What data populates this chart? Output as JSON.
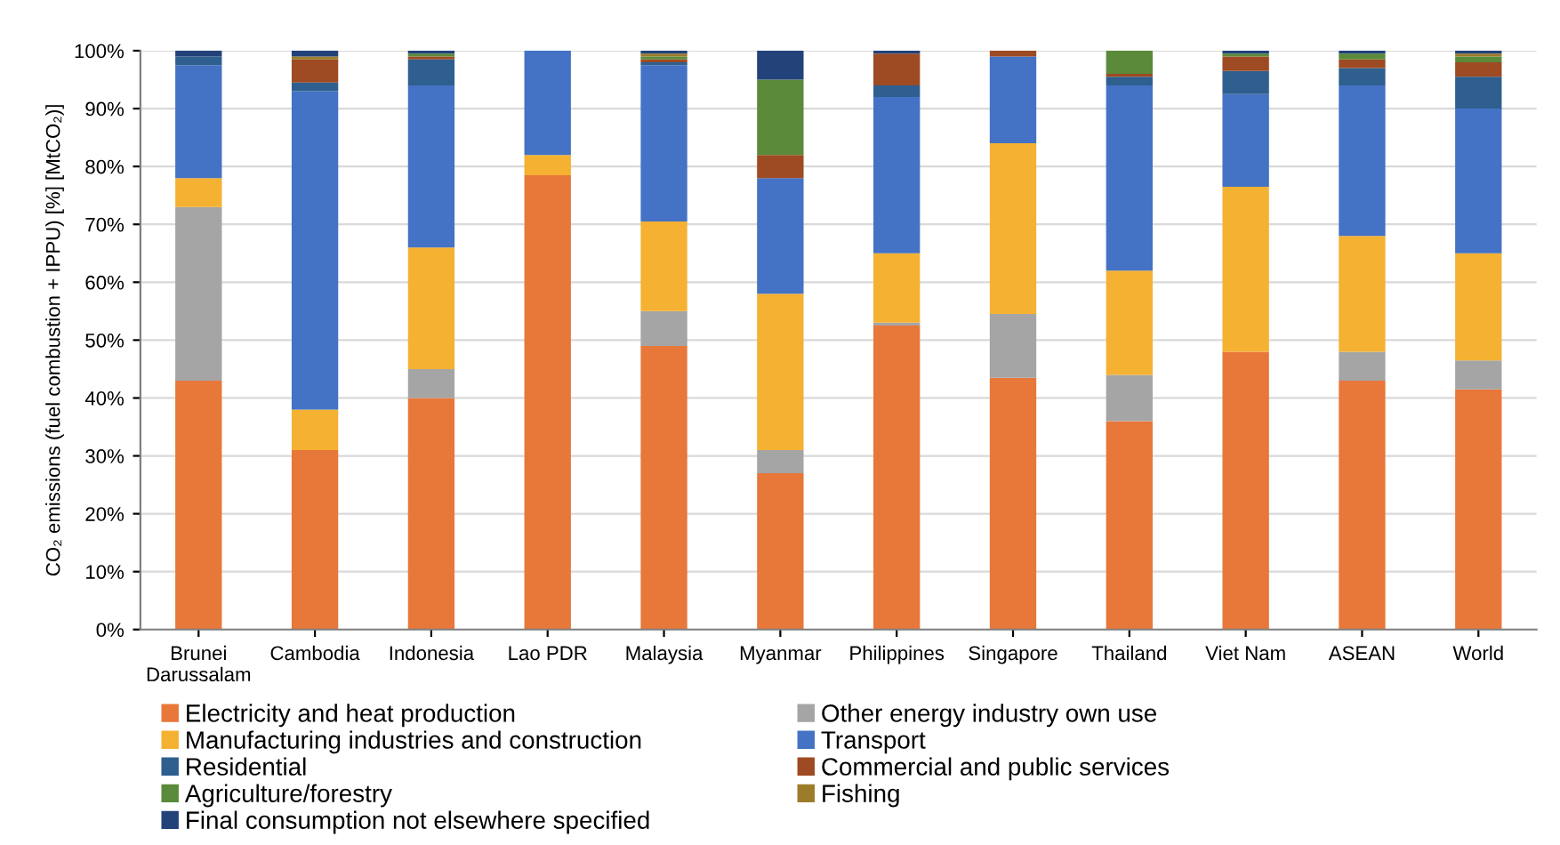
{
  "chart_data": {
    "type": "bar",
    "stacked": true,
    "ylabel": "CO₂ emissions (fuel combustion + IPPU) [%] [MtCO₂)]",
    "categories": [
      "Brunei\nDarussalam",
      "Cambodia",
      "Indonesia",
      "Lao PDR",
      "Malaysia",
      "Myanmar",
      "Philippines",
      "Singapore",
      "Thailand",
      "Viet Nam",
      "ASEAN",
      "World"
    ],
    "series": [
      {
        "name": "Electricity and heat production",
        "color": "#e8773a",
        "values": [
          43,
          31,
          40,
          78.5,
          49,
          27,
          52.5,
          43.5,
          36,
          48,
          43,
          41.5
        ]
      },
      {
        "name": "Other energy industry own use",
        "color": "#a5a5a5",
        "values": [
          30,
          0,
          5,
          0,
          6,
          4,
          0.5,
          11,
          8,
          0,
          5,
          5
        ]
      },
      {
        "name": "Manufacturing industries and construction",
        "color": "#f4b132",
        "values": [
          5,
          7,
          21,
          3.5,
          15.5,
          27,
          12,
          29.5,
          18,
          28.5,
          20,
          18.5
        ]
      },
      {
        "name": "Transport",
        "color": "#4472c4",
        "values": [
          19.5,
          55,
          28,
          18,
          27,
          20,
          27,
          15,
          32,
          16,
          26,
          25
        ]
      },
      {
        "name": "Residential",
        "color": "#2e5f8f",
        "values": [
          1.5,
          1.5,
          4.5,
          0,
          0.5,
          0,
          2,
          0,
          1.5,
          4,
          3,
          5.5
        ]
      },
      {
        "name": "Commercial and public services",
        "color": "#9e4a23",
        "values": [
          0,
          4,
          0.5,
          0,
          0.5,
          4,
          5.5,
          1,
          0.5,
          2.5,
          1.5,
          2.5
        ]
      },
      {
        "name": "Agriculture/forestry",
        "color": "#5a8a3a",
        "values": [
          0,
          0,
          0.5,
          0,
          0.5,
          13,
          0,
          0,
          4,
          0.5,
          1,
          1
        ]
      },
      {
        "name": "Fishing",
        "color": "#9c7c2a",
        "values": [
          0,
          0.5,
          0,
          0,
          0.5,
          0,
          0,
          0,
          0,
          0,
          0,
          0.5
        ]
      },
      {
        "name": "Final consumption not elsewhere specified",
        "color": "#23427a",
        "values": [
          1,
          1,
          0.5,
          0,
          0.5,
          5,
          0.5,
          0,
          0,
          0.5,
          0.5,
          0.5
        ]
      }
    ],
    "ylim": [
      0,
      100
    ],
    "yticks": [
      {
        "value": 0,
        "label": "0%"
      },
      {
        "value": 10,
        "label": "10%"
      },
      {
        "value": 20,
        "label": "20%"
      },
      {
        "value": 30,
        "label": "30%"
      },
      {
        "value": 40,
        "label": "40%"
      },
      {
        "value": 50,
        "label": "50%"
      },
      {
        "value": 60,
        "label": "60%"
      },
      {
        "value": 70,
        "label": "70%"
      },
      {
        "value": 80,
        "label": "80%"
      },
      {
        "value": 90,
        "label": "90%"
      },
      {
        "value": 100,
        "label": "100%"
      }
    ],
    "grid": "y",
    "legend": "bottom"
  }
}
